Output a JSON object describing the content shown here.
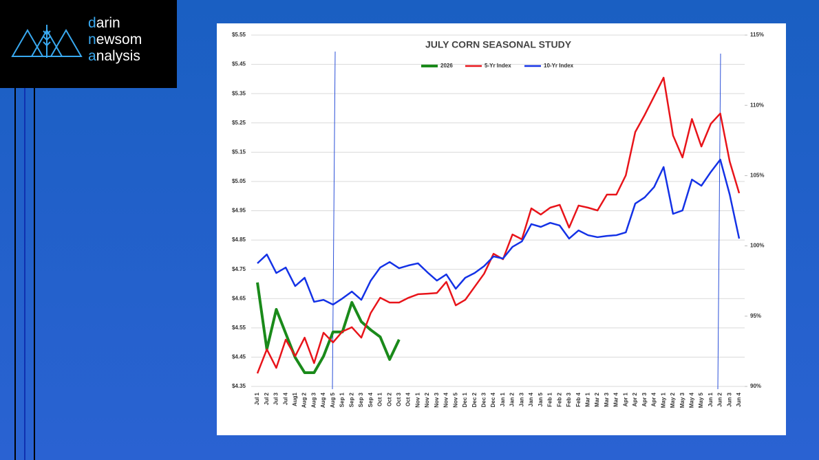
{
  "logo": {
    "lines": [
      "darin",
      "newsom",
      "analysis"
    ]
  },
  "chart_data": {
    "type": "line",
    "title": "JULY CORN SEASONAL STUDY",
    "categories": [
      "Jul 1",
      "Jul 2",
      "Jul 3",
      "Jul 4",
      "Aug1",
      "Aug 2",
      "Aug 3",
      "Aug 4",
      "Aug 5",
      "Sep 1",
      "Sep 2",
      "Sep 3",
      "Sep 4",
      "Oct 1",
      "Oct 2",
      "Oct 3",
      "Oct 4",
      "Nov 1",
      "Nov 2",
      "Nov 3",
      "Nov 4",
      "Nov 5",
      "Dec 1",
      "Dec 2",
      "Dec 3",
      "Dec 4",
      "Jan 1",
      "Jan 2",
      "Jan 3",
      "Jan 4",
      "Jan 5",
      "Feb 1",
      "Feb 2",
      "Feb 3",
      "Feb 4",
      "Mar 1",
      "Mar 2",
      "Mar 3",
      "Mar 4",
      "Apr 1",
      "Apr 2",
      "Apr 3",
      "Apr 4",
      "May 1",
      "May 2",
      "May 3",
      "May 4",
      "May 5",
      "Jun 1",
      "Jun 2",
      "Jun 3",
      "Jun 4"
    ],
    "series": [
      {
        "name": "2026",
        "color": "#1a8a1a",
        "axis": "y",
        "values": [
          4.705,
          4.477,
          4.613,
          4.531,
          4.449,
          4.397,
          4.397,
          4.453,
          4.536,
          4.536,
          4.637,
          4.571,
          4.543,
          4.519,
          4.442,
          4.51,
          null,
          null,
          null,
          null,
          null,
          null,
          null,
          null,
          null,
          null,
          null,
          null,
          null,
          null,
          null,
          null,
          null,
          null,
          null,
          null,
          null,
          null,
          null,
          null,
          null,
          null,
          null,
          null,
          null,
          null,
          null,
          null,
          null,
          null,
          null,
          null
        ]
      },
      {
        "name": "5-Yr Index",
        "color": "#e8141a",
        "axis": "y2",
        "values": [
          90.93,
          92.64,
          91.32,
          93.33,
          92.15,
          93.47,
          91.66,
          93.82,
          93.13,
          93.91,
          94.21,
          93.47,
          95.23,
          96.31,
          95.97,
          95.97,
          96.31,
          96.56,
          96.6,
          96.65,
          97.44,
          95.77,
          96.16,
          97.09,
          98.02,
          99.44,
          99.05,
          100.81,
          100.47,
          102.67,
          102.23,
          102.72,
          102.92,
          101.3,
          102.87,
          102.72,
          102.52,
          103.65,
          103.65,
          105.02,
          108.1,
          109.32,
          110.64,
          111.97,
          107.86,
          106.29,
          109.03,
          107.07,
          108.69,
          109.42,
          106.0,
          103.75
        ]
      },
      {
        "name": "10-Yr Index",
        "color": "#1432e6",
        "axis": "y2",
        "values": [
          98.76,
          99.39,
          98.07,
          98.46,
          97.14,
          97.73,
          96.02,
          96.16,
          95.82,
          96.26,
          96.75,
          96.16,
          97.53,
          98.46,
          98.85,
          98.41,
          98.61,
          98.76,
          98.12,
          97.53,
          97.97,
          96.95,
          97.73,
          98.07,
          98.56,
          99.25,
          99.1,
          99.93,
          100.32,
          101.55,
          101.35,
          101.64,
          101.45,
          100.52,
          101.1,
          100.76,
          100.62,
          100.71,
          100.76,
          100.96,
          103.01,
          103.45,
          104.19,
          105.61,
          102.28,
          102.52,
          104.72,
          104.28,
          105.26,
          106.14,
          103.65,
          100.52
        ]
      }
    ],
    "ylim": [
      4.35,
      5.55
    ],
    "yticks": [
      {
        "value": 4.35,
        "label": "$4.35"
      },
      {
        "value": 4.45,
        "label": "$4.45"
      },
      {
        "value": 4.55,
        "label": "$4.55"
      },
      {
        "value": 4.65,
        "label": "$4.65"
      },
      {
        "value": 4.75,
        "label": "$4.75"
      },
      {
        "value": 4.85,
        "label": "$4.85"
      },
      {
        "value": 4.95,
        "label": "$4.95"
      },
      {
        "value": 5.05,
        "label": "$5.05"
      },
      {
        "value": 5.15,
        "label": "$5.15"
      },
      {
        "value": 5.25,
        "label": "$5.25"
      },
      {
        "value": 5.35,
        "label": "$5.35"
      },
      {
        "value": 5.45,
        "label": "$5.45"
      },
      {
        "value": 5.55,
        "label": "$5.55"
      }
    ],
    "y2lim": [
      90,
      115
    ],
    "y2ticks": [
      {
        "value": 90,
        "label": "90%"
      },
      {
        "value": 95,
        "label": "95%"
      },
      {
        "value": 100,
        "label": "100%"
      },
      {
        "value": 105,
        "label": "105%"
      },
      {
        "value": 110,
        "label": "110%"
      },
      {
        "value": 115,
        "label": "115%"
      }
    ],
    "grid": true
  }
}
